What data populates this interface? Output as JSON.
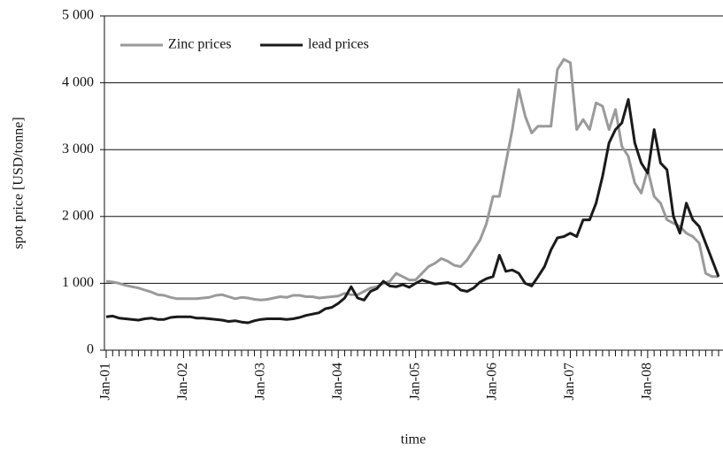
{
  "chart_data": {
    "type": "line",
    "xlabel": "time",
    "ylabel": "spot price [USD/tonne]",
    "categories": [
      "Jan-01",
      null,
      null,
      null,
      null,
      null,
      null,
      null,
      null,
      null,
      null,
      null,
      "Jan-02",
      null,
      null,
      null,
      null,
      null,
      null,
      null,
      null,
      null,
      null,
      null,
      "Jan-03",
      null,
      null,
      null,
      null,
      null,
      null,
      null,
      null,
      null,
      null,
      null,
      "Jan-04",
      null,
      null,
      null,
      null,
      null,
      null,
      null,
      null,
      null,
      null,
      null,
      "Jan-05",
      null,
      null,
      null,
      null,
      null,
      null,
      null,
      null,
      null,
      null,
      null,
      "Jan-06",
      null,
      null,
      null,
      null,
      null,
      null,
      null,
      null,
      null,
      null,
      null,
      "Jan-07",
      null,
      null,
      null,
      null,
      null,
      null,
      null,
      null,
      null,
      null,
      null,
      "Jan-08",
      null,
      null,
      null,
      null,
      null,
      null,
      null,
      null,
      null,
      null,
      null
    ],
    "series": [
      {
        "name": "Zinc prices",
        "color": "#9a9a9a",
        "values": [
          1030,
          1020,
          1000,
          970,
          950,
          930,
          900,
          870,
          830,
          820,
          790,
          770,
          770,
          770,
          770,
          780,
          790,
          820,
          830,
          800,
          770,
          790,
          780,
          760,
          750,
          760,
          780,
          800,
          790,
          820,
          820,
          800,
          800,
          780,
          790,
          800,
          810,
          850,
          830,
          830,
          880,
          930,
          950,
          1000,
          1030,
          1150,
          1100,
          1050,
          1050,
          1150,
          1250,
          1300,
          1370,
          1330,
          1270,
          1250,
          1350,
          1500,
          1650,
          1900,
          2300,
          2300,
          2800,
          3300,
          3900,
          3500,
          3250,
          3350,
          3350,
          3350,
          4200,
          4350,
          4300,
          3300,
          3450,
          3300,
          3700,
          3650,
          3300,
          3600,
          3050,
          2900,
          2500,
          2350,
          2700,
          2300,
          2200,
          1950,
          1900,
          1850,
          1750,
          1700,
          1600,
          1150,
          1100,
          1100
        ]
      },
      {
        "name": "lead prices",
        "color": "#1a1a1a",
        "values": [
          500,
          510,
          480,
          470,
          460,
          450,
          470,
          480,
          460,
          460,
          490,
          500,
          500,
          500,
          480,
          480,
          470,
          460,
          450,
          430,
          440,
          420,
          410,
          440,
          460,
          470,
          470,
          470,
          460,
          470,
          490,
          520,
          540,
          560,
          620,
          640,
          700,
          780,
          950,
          780,
          750,
          880,
          920,
          1030,
          960,
          950,
          980,
          940,
          1000,
          1050,
          1020,
          990,
          1000,
          1010,
          980,
          900,
          880,
          930,
          1020,
          1070,
          1100,
          1420,
          1180,
          1200,
          1150,
          1000,
          960,
          1100,
          1250,
          1500,
          1680,
          1700,
          1750,
          1700,
          1950,
          1950,
          2200,
          2600,
          3100,
          3300,
          3400,
          3750,
          3100,
          2800,
          2650,
          3300,
          2800,
          2700,
          2000,
          1750,
          2200,
          1950,
          1850,
          1600,
          1350,
          1100
        ]
      }
    ],
    "ylim": [
      0,
      5000
    ],
    "yticks": [
      0,
      {
        "value": 1000,
        "label": "1 000"
      },
      {
        "value": 2000,
        "label": "2 000"
      },
      {
        "value": 3000,
        "label": "3 000"
      },
      {
        "value": 4000,
        "label": "4 000"
      },
      {
        "value": 5000,
        "label": "5 000"
      }
    ],
    "grid": true,
    "legend": "upper left"
  }
}
